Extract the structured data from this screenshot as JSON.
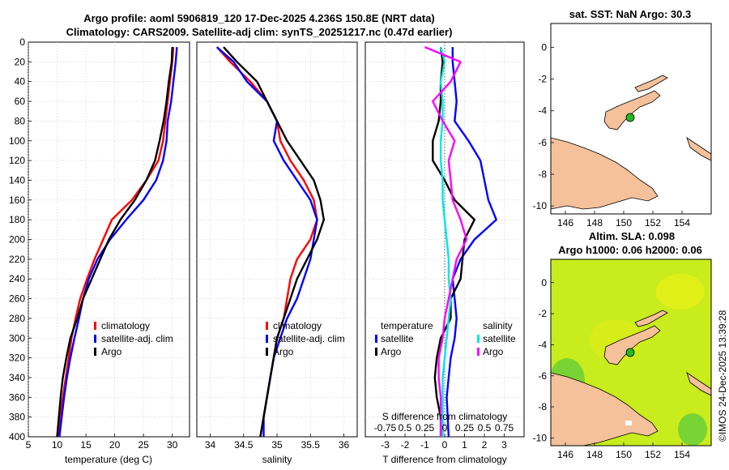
{
  "header": {
    "title_line1": "Argo profile: aoml 5906819_120 17-Dec-2025 4.236S 150.8E (NRT data)",
    "title_line2": "Climatology: CARS2009. Satellite-adj clim: synTS_20251217.nc (0.47d earlier)"
  },
  "colors": {
    "climatology": "#ff0000",
    "satellite": "#0000ff",
    "argo": "#000000",
    "salinity_satellite": "#00e5e5",
    "salinity_argo": "#ff00ff",
    "land": "#f4c19a",
    "sla_field": "#c8ec1c",
    "marker": "#22bb22"
  },
  "chart_data": [
    {
      "id": "temperature",
      "type": "line",
      "xlabel": "temperature (deg C)",
      "xlim": [
        5,
        33
      ],
      "xticks": [
        5,
        10,
        15,
        20,
        25,
        30
      ],
      "ylim": [
        0,
        400
      ],
      "yticks": [
        0,
        20,
        40,
        60,
        80,
        100,
        120,
        140,
        160,
        180,
        200,
        220,
        240,
        260,
        280,
        300,
        320,
        340,
        360,
        380,
        400
      ],
      "legend": [
        "climatology",
        "satellite-adj. clim",
        "Argo"
      ],
      "series": [
        {
          "name": "climatology",
          "color": "#ff0000",
          "points": [
            [
              30.2,
              5
            ],
            [
              30.0,
              20
            ],
            [
              29.6,
              40
            ],
            [
              29.2,
              60
            ],
            [
              28.8,
              80
            ],
            [
              28.4,
              100
            ],
            [
              27.6,
              120
            ],
            [
              25.5,
              140
            ],
            [
              23.0,
              160
            ],
            [
              19.5,
              180
            ],
            [
              18.0,
              200
            ],
            [
              16.5,
              220
            ],
            [
              15.2,
              240
            ],
            [
              14.0,
              260
            ],
            [
              13.2,
              280
            ],
            [
              12.5,
              300
            ],
            [
              12.0,
              320
            ],
            [
              11.5,
              340
            ],
            [
              11.0,
              360
            ],
            [
              10.5,
              380
            ],
            [
              10.2,
              400
            ]
          ]
        },
        {
          "name": "satellite-adj. clim",
          "color": "#0000ff",
          "points": [
            [
              30.8,
              5
            ],
            [
              30.6,
              20
            ],
            [
              30.2,
              40
            ],
            [
              29.8,
              60
            ],
            [
              29.2,
              80
            ],
            [
              29.0,
              100
            ],
            [
              28.4,
              120
            ],
            [
              27.2,
              140
            ],
            [
              25.0,
              160
            ],
            [
              22.0,
              180
            ],
            [
              19.2,
              200
            ],
            [
              17.0,
              220
            ],
            [
              15.5,
              240
            ],
            [
              14.5,
              260
            ],
            [
              13.8,
              280
            ],
            [
              13.0,
              300
            ],
            [
              12.3,
              320
            ],
            [
              11.7,
              340
            ],
            [
              11.2,
              360
            ],
            [
              10.8,
              380
            ],
            [
              10.4,
              400
            ]
          ]
        },
        {
          "name": "Argo",
          "color": "#000000",
          "points": [
            [
              30.0,
              5
            ],
            [
              29.9,
              20
            ],
            [
              29.4,
              40
            ],
            [
              29.0,
              60
            ],
            [
              28.5,
              80
            ],
            [
              27.8,
              100
            ],
            [
              27.0,
              120
            ],
            [
              25.5,
              140
            ],
            [
              23.5,
              160
            ],
            [
              21.0,
              180
            ],
            [
              19.0,
              200
            ],
            [
              17.5,
              220
            ],
            [
              16.0,
              240
            ],
            [
              14.5,
              260
            ],
            [
              13.5,
              280
            ],
            [
              12.3,
              300
            ],
            [
              11.6,
              320
            ],
            [
              11.0,
              340
            ],
            [
              10.6,
              360
            ],
            [
              10.3,
              380
            ],
            [
              10.0,
              400
            ]
          ]
        }
      ]
    },
    {
      "id": "salinity",
      "type": "line",
      "xlabel": "salinity",
      "xlim": [
        33.8,
        36.2
      ],
      "xticks": [
        34,
        34.5,
        35,
        35.5,
        36
      ],
      "ylim": [
        0,
        400
      ],
      "legend": [
        "climatology",
        "satellite-adj. clim",
        "Argo"
      ],
      "series": [
        {
          "name": "climatology",
          "color": "#ff0000",
          "points": [
            [
              34.1,
              5
            ],
            [
              34.3,
              20
            ],
            [
              34.6,
              40
            ],
            [
              34.85,
              60
            ],
            [
              35.0,
              80
            ],
            [
              35.05,
              100
            ],
            [
              35.2,
              120
            ],
            [
              35.4,
              140
            ],
            [
              35.55,
              160
            ],
            [
              35.6,
              180
            ],
            [
              35.5,
              200
            ],
            [
              35.3,
              220
            ],
            [
              35.2,
              240
            ],
            [
              35.15,
              260
            ],
            [
              35.1,
              280
            ],
            [
              35.0,
              300
            ],
            [
              34.95,
              320
            ],
            [
              34.9,
              340
            ],
            [
              34.85,
              360
            ],
            [
              34.8,
              380
            ],
            [
              34.75,
              400
            ]
          ]
        },
        {
          "name": "satellite-adj. clim",
          "color": "#0000ff",
          "points": [
            [
              34.1,
              5
            ],
            [
              34.35,
              20
            ],
            [
              34.55,
              40
            ],
            [
              34.85,
              60
            ],
            [
              35.0,
              80
            ],
            [
              34.95,
              100
            ],
            [
              35.1,
              120
            ],
            [
              35.3,
              140
            ],
            [
              35.5,
              160
            ],
            [
              35.6,
              180
            ],
            [
              35.55,
              200
            ],
            [
              35.5,
              220
            ],
            [
              35.4,
              240
            ],
            [
              35.3,
              260
            ],
            [
              35.15,
              280
            ],
            [
              35.05,
              300
            ],
            [
              34.95,
              320
            ],
            [
              34.9,
              340
            ],
            [
              34.85,
              360
            ],
            [
              34.8,
              380
            ],
            [
              34.8,
              400
            ]
          ]
        },
        {
          "name": "Argo",
          "color": "#000000",
          "points": [
            [
              34.2,
              5
            ],
            [
              34.4,
              20
            ],
            [
              34.7,
              40
            ],
            [
              34.85,
              60
            ],
            [
              35.0,
              80
            ],
            [
              35.15,
              100
            ],
            [
              35.35,
              120
            ],
            [
              35.55,
              140
            ],
            [
              35.65,
              160
            ],
            [
              35.7,
              180
            ],
            [
              35.6,
              200
            ],
            [
              35.45,
              220
            ],
            [
              35.3,
              240
            ],
            [
              35.2,
              260
            ],
            [
              35.1,
              280
            ],
            [
              35.0,
              300
            ],
            [
              34.95,
              320
            ],
            [
              34.9,
              340
            ],
            [
              34.85,
              360
            ],
            [
              34.8,
              380
            ],
            [
              34.75,
              400
            ]
          ]
        }
      ]
    },
    {
      "id": "differences",
      "type": "line",
      "xlabel": "T difference from climatology",
      "xlim": [
        -4,
        4
      ],
      "xticks": [
        -3,
        -2,
        -1,
        0,
        1,
        2,
        3
      ],
      "top_axis_label": "S difference from climatology",
      "top_axis_ticks": [
        "-0.75",
        "0.5",
        "0.25",
        "0",
        "0.25",
        "0.5",
        "0.75"
      ],
      "ylim": [
        0,
        400
      ],
      "legend_groups": [
        {
          "title": "temperature",
          "items": [
            "satellite",
            "Argo"
          ]
        },
        {
          "title": "salinity",
          "items": [
            "satellite",
            "Argo"
          ]
        }
      ],
      "series": [
        {
          "name": "temperature satellite",
          "color": "#0000ff",
          "points": [
            [
              0.4,
              5
            ],
            [
              0.4,
              20
            ],
            [
              0.5,
              40
            ],
            [
              0.6,
              60
            ],
            [
              0.5,
              80
            ],
            [
              1.2,
              100
            ],
            [
              1.8,
              120
            ],
            [
              2.0,
              140
            ],
            [
              2.2,
              160
            ],
            [
              2.6,
              180
            ],
            [
              1.5,
              200
            ],
            [
              0.8,
              220
            ],
            [
              0.4,
              240
            ],
            [
              0.5,
              260
            ],
            [
              0.6,
              280
            ],
            [
              0.5,
              300
            ],
            [
              0.3,
              320
            ],
            [
              0.2,
              340
            ],
            [
              0.1,
              360
            ],
            [
              0.15,
              380
            ],
            [
              0.2,
              400
            ]
          ]
        },
        {
          "name": "temperature Argo",
          "color": "#000000",
          "points": [
            [
              -0.2,
              5
            ],
            [
              -0.1,
              20
            ],
            [
              -0.2,
              40
            ],
            [
              -0.2,
              60
            ],
            [
              -0.3,
              80
            ],
            [
              -0.6,
              100
            ],
            [
              -0.6,
              120
            ],
            [
              0.0,
              140
            ],
            [
              0.5,
              160
            ],
            [
              1.5,
              180
            ],
            [
              1.0,
              200
            ],
            [
              0.9,
              220
            ],
            [
              0.8,
              240
            ],
            [
              0.3,
              260
            ],
            [
              0.3,
              280
            ],
            [
              -0.2,
              300
            ],
            [
              -0.4,
              320
            ],
            [
              -0.5,
              340
            ],
            [
              -0.4,
              360
            ],
            [
              -0.2,
              380
            ],
            [
              -0.2,
              400
            ]
          ]
        },
        {
          "name": "salinity satellite",
          "color": "#00e5e5",
          "points": [
            [
              -0.2,
              5
            ],
            [
              0.0,
              20
            ],
            [
              -0.2,
              40
            ],
            [
              -0.1,
              60
            ],
            [
              -0.1,
              80
            ],
            [
              -0.2,
              100
            ],
            [
              -0.2,
              120
            ],
            [
              -0.1,
              140
            ],
            [
              -0.1,
              160
            ],
            [
              0.0,
              180
            ],
            [
              0.1,
              200
            ],
            [
              0.2,
              220
            ],
            [
              0.2,
              240
            ],
            [
              0.3,
              260
            ],
            [
              0.2,
              280
            ],
            [
              0.1,
              300
            ],
            [
              0.0,
              320
            ],
            [
              -0.1,
              340
            ],
            [
              -0.1,
              360
            ],
            [
              -0.1,
              380
            ],
            [
              -0.1,
              400
            ]
          ]
        },
        {
          "name": "salinity Argo",
          "color": "#ff00ff",
          "points": [
            [
              -1.0,
              5
            ],
            [
              0.8,
              20
            ],
            [
              0.3,
              40
            ],
            [
              -0.6,
              60
            ],
            [
              -0.1,
              80
            ],
            [
              0.5,
              100
            ],
            [
              0.2,
              120
            ],
            [
              0.3,
              140
            ],
            [
              0.4,
              160
            ],
            [
              0.8,
              180
            ],
            [
              1.1,
              200
            ],
            [
              0.6,
              220
            ],
            [
              0.4,
              240
            ],
            [
              0.2,
              260
            ],
            [
              0.0,
              280
            ],
            [
              -0.1,
              300
            ],
            [
              -0.3,
              320
            ],
            [
              -0.3,
              340
            ],
            [
              -0.2,
              360
            ],
            [
              -0.2,
              380
            ],
            [
              -0.2,
              400
            ]
          ]
        }
      ]
    },
    {
      "id": "sst_map",
      "type": "map",
      "title": "sat. SST: NaN Argo: 30.3",
      "xticks": [
        146,
        148,
        150,
        152,
        154
      ],
      "yticks": [
        0,
        -2,
        -4,
        -6,
        -8,
        -10
      ],
      "xlim": [
        145,
        156
      ],
      "ylim": [
        -10.5,
        1.5
      ],
      "marker": [
        150.8,
        -4.236
      ]
    },
    {
      "id": "sla_map",
      "type": "map",
      "title_line1": "Altim. SLA: 0.098",
      "title_line2": "Argo h1000: 0.06 h2000: 0.06",
      "xticks": [
        146,
        148,
        150,
        152,
        154
      ],
      "yticks": [
        0,
        -2,
        -4,
        -6,
        -8,
        -10
      ],
      "xlim": [
        145,
        156
      ],
      "ylim": [
        -10.5,
        1.5
      ],
      "marker": [
        150.8,
        -4.236
      ]
    }
  ],
  "footer": {
    "credit": "©IMOS 24-Dec-2025 13:39:28"
  }
}
